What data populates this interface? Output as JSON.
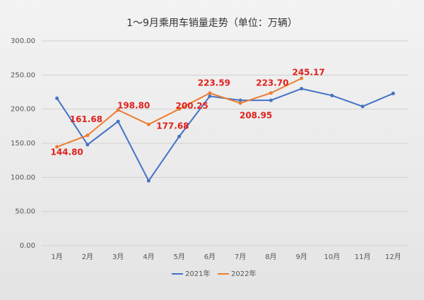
{
  "chart_data": {
    "type": "line",
    "title": "1～9月乘用车销量走势（单位：万辆）",
    "categories": [
      "1月",
      "2月",
      "3月",
      "4月",
      "5月",
      "6月",
      "7月",
      "8月",
      "9月",
      "10月",
      "11月",
      "12月"
    ],
    "series": [
      {
        "name": "2021年",
        "color": "#4472c4",
        "values": [
          216,
          148,
          182,
          95,
          160,
          219,
          213,
          213,
          230,
          220,
          204,
          223
        ]
      },
      {
        "name": "2022年",
        "color": "#ed7d31",
        "values": [
          144.8,
          161.68,
          198.8,
          177.68,
          200.25,
          223.59,
          208.95,
          223.7,
          245.17,
          null,
          null,
          null
        ],
        "value_labels": [
          "144.80",
          "161.68",
          "198.80",
          "177.68",
          "200.25",
          "223.59",
          "208.95",
          "223.70",
          "245.17",
          null,
          null,
          null
        ]
      }
    ],
    "ylim": [
      0,
      300
    ],
    "yticks": [
      {
        "value": 0,
        "label": "0.00"
      },
      {
        "value": 50,
        "label": "50.00"
      },
      {
        "value": 100,
        "label": "100.00"
      },
      {
        "value": 150,
        "label": "150.00"
      },
      {
        "value": 200,
        "label": "200.00"
      },
      {
        "value": 250,
        "label": "250.00"
      },
      {
        "value": 300,
        "label": "300.00"
      }
    ],
    "grid": true,
    "legend": "bottom"
  }
}
